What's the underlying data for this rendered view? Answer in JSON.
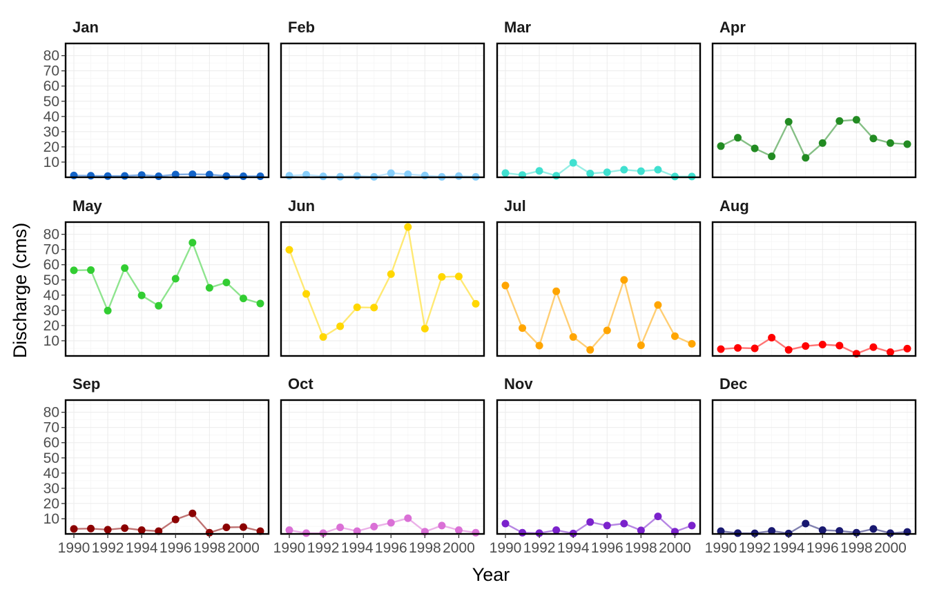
{
  "chart_data": {
    "type": "line",
    "xlabel": "Year",
    "ylabel": "Discharge (cms)",
    "x": [
      1990,
      1991,
      1992,
      1993,
      1994,
      1995,
      1996,
      1997,
      1998,
      1999,
      2000,
      2001
    ],
    "xlim": [
      1990,
      2001
    ],
    "ylim": [
      0,
      88
    ],
    "x_ticks": [
      1990,
      1992,
      1994,
      1996,
      1998,
      2000
    ],
    "y_ticks": [
      10,
      20,
      30,
      40,
      50,
      60,
      70,
      80
    ],
    "grid": true,
    "legend": "none",
    "panels": [
      {
        "name": "Jan",
        "color": "#1464c8",
        "values": [
          1.2,
          1.0,
          0.8,
          0.9,
          1.5,
          0.7,
          1.8,
          2.0,
          1.8,
          0.8,
          0.7,
          0.7
        ]
      },
      {
        "name": "Feb",
        "color": "#87cefa",
        "values": [
          1.0,
          1.7,
          0.6,
          0.4,
          0.9,
          0.3,
          2.7,
          2.0,
          1.2,
          0.3,
          0.8,
          0.3
        ]
      },
      {
        "name": "Mar",
        "color": "#40e0d0",
        "values": [
          2.8,
          1.5,
          4.2,
          1.0,
          9.5,
          2.5,
          3.3,
          5.0,
          4.0,
          5.0,
          0.5,
          0.5
        ]
      },
      {
        "name": "Apr",
        "color": "#228b22",
        "values": [
          20.5,
          26.0,
          19.0,
          13.8,
          36.5,
          12.8,
          22.5,
          37.0,
          37.8,
          25.5,
          22.5,
          21.8
        ]
      },
      {
        "name": "May",
        "color": "#32cd32",
        "values": [
          56.3,
          56.5,
          29.8,
          57.8,
          39.8,
          33.0,
          50.8,
          74.5,
          44.8,
          48.3,
          37.8,
          34.5
        ]
      },
      {
        "name": "Jun",
        "color": "#ffd700",
        "values": [
          69.8,
          40.8,
          12.5,
          19.5,
          32.0,
          31.8,
          53.8,
          84.8,
          18.0,
          52.0,
          52.3,
          34.3
        ]
      },
      {
        "name": "Jul",
        "color": "#ffa500",
        "values": [
          46.3,
          18.3,
          6.8,
          42.5,
          12.5,
          4.0,
          16.8,
          50.0,
          7.0,
          33.5,
          13.0,
          8.0
        ]
      },
      {
        "name": "Aug",
        "color": "#ff0000",
        "values": [
          4.5,
          5.3,
          5.0,
          12.0,
          4.0,
          6.5,
          7.5,
          6.8,
          1.5,
          5.8,
          2.5,
          4.8
        ]
      },
      {
        "name": "Sep",
        "color": "#8b0000",
        "values": [
          3.3,
          3.5,
          2.8,
          3.8,
          2.5,
          1.8,
          9.5,
          13.5,
          0.8,
          4.3,
          4.5,
          1.8
        ]
      },
      {
        "name": "Oct",
        "color": "#da70d6",
        "values": [
          2.5,
          0.5,
          0.5,
          4.3,
          1.8,
          4.8,
          7.3,
          10.3,
          1.5,
          5.5,
          2.5,
          0.8
        ]
      },
      {
        "name": "Nov",
        "color": "#7b22cc",
        "values": [
          6.8,
          0.8,
          0.5,
          2.5,
          0.3,
          7.8,
          5.5,
          6.8,
          2.3,
          11.5,
          1.5,
          5.5
        ]
      },
      {
        "name": "Dec",
        "color": "#191970",
        "values": [
          1.8,
          0.5,
          0.4,
          2.0,
          0.3,
          6.8,
          2.5,
          2.0,
          0.8,
          3.3,
          0.5,
          1.3
        ]
      }
    ]
  }
}
